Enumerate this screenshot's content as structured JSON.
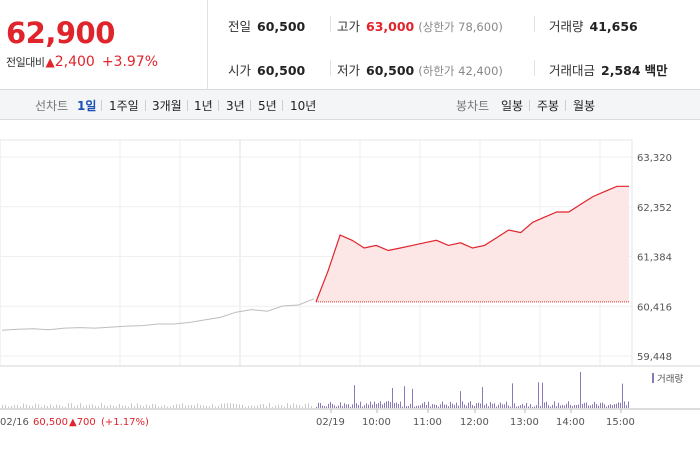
{
  "quote": {
    "price": "62,900",
    "change_label": "전일대비",
    "change_arrow": "▲",
    "change_value": "2,400",
    "change_pct": "+3.97%"
  },
  "stats": {
    "prev_close_label": "전일",
    "prev_close": "60,500",
    "high_label": "고가",
    "high": "63,000",
    "upper_limit": "(상한가 78,600)",
    "volume_label": "거래량",
    "volume": "41,656",
    "open_label": "시가",
    "open": "60,500",
    "low_label": "저가",
    "low": "60,500",
    "lower_limit": "(하한가 42,400)",
    "amount_label": "거래대금",
    "amount": "2,584",
    "amount_unit": "백만"
  },
  "toolbar": {
    "line_chart_label": "선차트",
    "periods": [
      "1일",
      "1주일",
      "3개월",
      "1년",
      "3년",
      "5년",
      "10년"
    ],
    "active_period": "1일",
    "candle_label": "봉차트",
    "candles": [
      "일봉",
      "주봉",
      "월봉"
    ]
  },
  "colors": {
    "up": "#e0242b",
    "fill": "#fde6e6",
    "grey_line": "#bdbdbd",
    "volume": "#8a79b8"
  },
  "chart_data": {
    "type": "line",
    "y_ticks": [
      "63,320",
      "62,352",
      "61,384",
      "60,416",
      "59,448"
    ],
    "ylim": [
      59448,
      63320
    ],
    "baseline_value": 60500,
    "x_labels": [
      "02/19",
      "10:00",
      "11:00",
      "12:00",
      "13:00",
      "14:00",
      "15:00"
    ],
    "prev_day": {
      "date": "02/16",
      "close": "60,500",
      "change": "▲700",
      "change_pct": "(+1.17%)"
    },
    "volume_legend": "거래량",
    "series": [
      {
        "name": "",
        "x": [
          "09:00",
          "09:15",
          "09:30",
          "09:45",
          "10:00",
          "10:15",
          "10:30",
          "10:45",
          "11:00",
          "11:15",
          "11:30",
          "11:45",
          "12:00",
          "12:15",
          "12:30",
          "12:45",
          "13:00",
          "13:15",
          "13:30",
          "13:45",
          "14:00",
          "14:15",
          "14:30",
          "14:45",
          "15:00",
          "15:15",
          "15:20"
        ],
        "values": [
          60500,
          61100,
          61800,
          61700,
          61550,
          61600,
          61500,
          61550,
          61600,
          61650,
          61700,
          61600,
          61650,
          61550,
          61600,
          61750,
          61900,
          61850,
          62050,
          62150,
          62250,
          62250,
          62400,
          62550,
          62650,
          62750,
          62750
        ]
      }
    ],
    "previous_session": {
      "values": [
        59950,
        59970,
        59980,
        59960,
        59990,
        60000,
        59990,
        60010,
        60030,
        60040,
        60070,
        60070,
        60100,
        60150,
        60200,
        60300,
        60350,
        60320,
        60420,
        60440,
        60560
      ]
    }
  }
}
